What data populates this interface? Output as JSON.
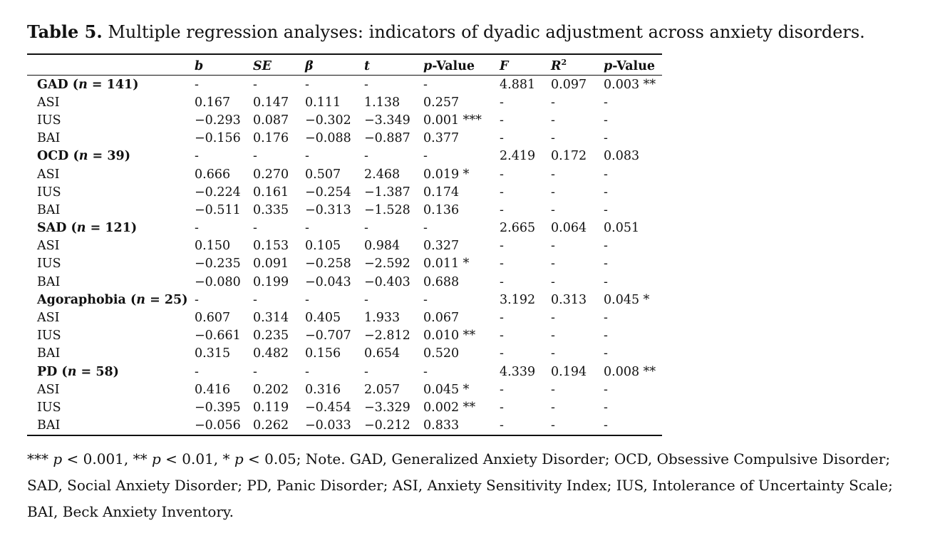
{
  "caption": {
    "label": "Table 5.",
    "text": " Multiple regression analyses: indicators of dyadic adjustment across anxiety disorders."
  },
  "headers": {
    "b": "b",
    "se": "SE",
    "beta": "β",
    "t": "t",
    "p_ital": "p",
    "p_rest": "-Value",
    "f": "F",
    "r": "R",
    "r_sup": "2",
    "p2_ital": "p",
    "p2_rest": "-Value"
  },
  "groups": [
    {
      "name": "GAD",
      "n": "141",
      "summary": [
        "-",
        "-",
        "-",
        "-",
        "-",
        "4.881",
        "0.097",
        "0.003 **"
      ],
      "rows": [
        {
          "label": "ASI",
          "cells": [
            "0.167",
            "0.147",
            "0.111",
            "1.138",
            "0.257",
            "-",
            "-",
            "-"
          ]
        },
        {
          "label": "IUS",
          "cells": [
            "−0.293",
            "0.087",
            "−0.302",
            "−3.349",
            "0.001 ***",
            "-",
            "-",
            "-"
          ]
        },
        {
          "label": "BAI",
          "cells": [
            "−0.156",
            "0.176",
            "−0.088",
            "−0.887",
            "0.377",
            "-",
            "-",
            "-"
          ]
        }
      ]
    },
    {
      "name": "OCD",
      "n": "39",
      "summary": [
        "-",
        "-",
        "-",
        "-",
        "-",
        "2.419",
        "0.172",
        "0.083"
      ],
      "rows": [
        {
          "label": "ASI",
          "cells": [
            "0.666",
            "0.270",
            "0.507",
            "2.468",
            "0.019 *",
            "-",
            "-",
            "-"
          ]
        },
        {
          "label": "IUS",
          "cells": [
            "−0.224",
            "0.161",
            "−0.254",
            "−1.387",
            "0.174",
            "-",
            "-",
            "-"
          ]
        },
        {
          "label": "BAI",
          "cells": [
            "−0.511",
            "0.335",
            "−0.313",
            "−1.528",
            "0.136",
            "-",
            "-",
            "-"
          ]
        }
      ]
    },
    {
      "name": "SAD",
      "n": "121",
      "summary": [
        "-",
        "-",
        "-",
        "-",
        "-",
        "2.665",
        "0.064",
        "0.051"
      ],
      "rows": [
        {
          "label": "ASI",
          "cells": [
            "0.150",
            "0.153",
            "0.105",
            "0.984",
            "0.327",
            "-",
            "-",
            "-"
          ]
        },
        {
          "label": "IUS",
          "cells": [
            "−0.235",
            "0.091",
            "−0.258",
            "−2.592",
            "0.011 *",
            "-",
            "-",
            "-"
          ]
        },
        {
          "label": "BAI",
          "cells": [
            "−0.080",
            "0.199",
            "−0.043",
            "−0.403",
            "0.688",
            "-",
            "-",
            "-"
          ]
        }
      ]
    },
    {
      "name": "Agoraphobia",
      "n": "25",
      "summary": [
        "-",
        "-",
        "-",
        "-",
        "-",
        "3.192",
        "0.313",
        "0.045 *"
      ],
      "rows": [
        {
          "label": "ASI",
          "cells": [
            "0.607",
            "0.314",
            "0.405",
            "1.933",
            "0.067",
            "-",
            "-",
            "-"
          ]
        },
        {
          "label": "IUS",
          "cells": [
            "−0.661",
            "0.235",
            "−0.707",
            "−2.812",
            "0.010 **",
            "-",
            "-",
            "-"
          ]
        },
        {
          "label": "BAI",
          "cells": [
            "0.315",
            "0.482",
            "0.156",
            "0.654",
            "0.520",
            "-",
            "-",
            "-"
          ]
        }
      ]
    },
    {
      "name": "PD",
      "n": "58",
      "summary": [
        "-",
        "-",
        "-",
        "-",
        "-",
        "4.339",
        "0.194",
        "0.008 **"
      ],
      "rows": [
        {
          "label": "ASI",
          "cells": [
            "0.416",
            "0.202",
            "0.316",
            "2.057",
            "0.045 *",
            "-",
            "-",
            "-"
          ]
        },
        {
          "label": "IUS",
          "cells": [
            "−0.395",
            "0.119",
            "−0.454",
            "−3.329",
            "0.002 **",
            "-",
            "-",
            "-"
          ]
        },
        {
          "label": "BAI",
          "cells": [
            "−0.056",
            "0.262",
            "−0.033",
            "−0.212",
            "0.833",
            "-",
            "-",
            "-"
          ]
        }
      ]
    }
  ],
  "note": {
    "sig1_stars": "*** ",
    "sig1_p": "p",
    "sig1_rest": " < 0.001, ** ",
    "sig2_p": "p",
    "sig2_rest": " < 0.01, * ",
    "sig3_p": "p",
    "sig3_rest": " < 0.05; Note. GAD, Generalized Anxiety Disorder; OCD, Obsessive Compulsive Disorder; SAD, Social Anxiety Disorder; PD, Panic Disorder; ASI, Anxiety Sensitivity Index; IUS, Intolerance of Uncertainty Scale; BAI, Beck Anxiety Inventory."
  }
}
